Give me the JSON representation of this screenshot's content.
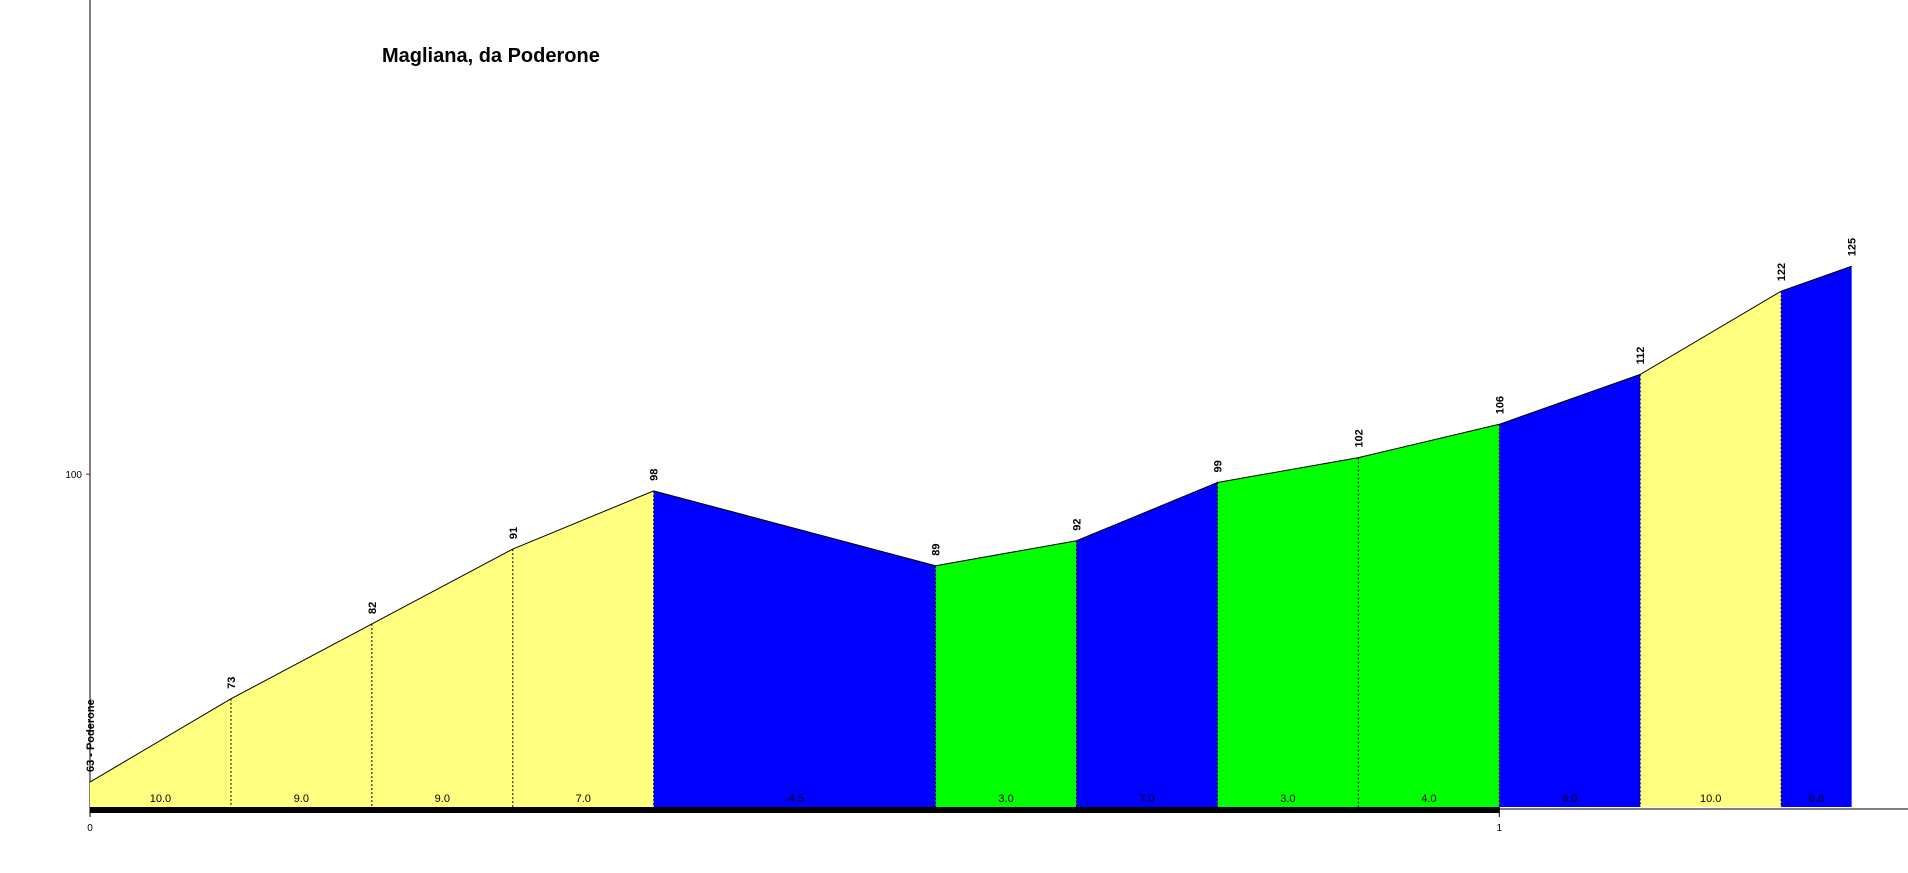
{
  "chart_data": {
    "type": "profile",
    "title": "Magliana, da Poderone",
    "x": [
      0,
      0.1,
      0.2,
      0.3,
      0.4,
      0.6,
      0.7,
      0.8,
      0.9,
      1.0,
      1.1,
      1.2,
      1.25
    ],
    "values": [
      63,
      73,
      82,
      91,
      98,
      89,
      92,
      99,
      102,
      106,
      112,
      122,
      125
    ],
    "value_labels": [
      "63 - Poderone",
      "73",
      "82",
      "91",
      "98",
      "89",
      "92",
      "99",
      "102",
      "106",
      "112",
      "122",
      "125"
    ],
    "segment_grades": [
      10.0,
      9.0,
      9.0,
      7.0,
      -4.5,
      3.0,
      7.0,
      3.0,
      4.0,
      6.0,
      10.0,
      6.0
    ],
    "segment_grade_labels": [
      "10.0",
      "9.0",
      "9.0",
      "7.0",
      "-4.5",
      "3.0",
      "7.0",
      "3.0",
      "4.0",
      "6.0",
      "10.0",
      "6.0"
    ],
    "segment_colors": [
      "#ffff80",
      "#ffff80",
      "#ffff80",
      "#ffff80",
      "#0000ff",
      "#00ff00",
      "#0000ff",
      "#00ff00",
      "#00ff00",
      "#0000ff",
      "#ffff80",
      "#0000ff"
    ],
    "xlim": [
      0,
      1.29
    ],
    "ylim": [
      60,
      157
    ],
    "xticks": [
      0,
      1
    ],
    "yticks": [
      100
    ]
  }
}
